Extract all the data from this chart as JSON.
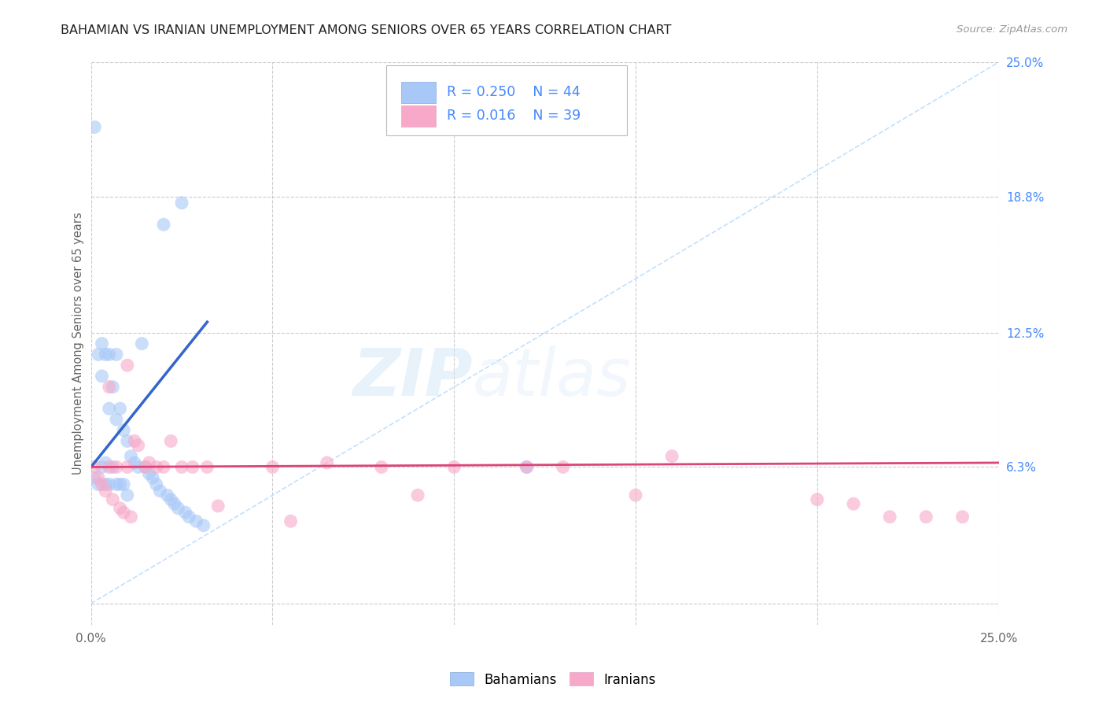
{
  "title": "BAHAMIAN VS IRANIAN UNEMPLOYMENT AMONG SENIORS OVER 65 YEARS CORRELATION CHART",
  "source": "Source: ZipAtlas.com",
  "ylabel": "Unemployment Among Seniors over 65 years",
  "xlim": [
    0.0,
    0.25
  ],
  "ylim": [
    -0.01,
    0.25
  ],
  "bahamian_R": 0.25,
  "bahamian_N": 44,
  "iranian_R": 0.016,
  "iranian_N": 39,
  "bahamian_color": "#a8c8f8",
  "iranian_color": "#f8a8c8",
  "bahamian_line_color": "#3366cc",
  "iranian_line_color": "#dd4477",
  "diagonal_color": "#bbddff",
  "background_color": "#ffffff",
  "grid_color": "#cccccc",
  "legend_text_color": "#4488ff",
  "right_tick_color": "#4488ff",
  "watermark": "ZIPatlas",
  "legend_bahamian_label": "Bahamians",
  "legend_iranian_label": "Iranians",
  "y_tick_positions_right": [
    0.0,
    0.063,
    0.125,
    0.188,
    0.25
  ],
  "y_tick_labels_right": [
    "",
    "6.3%",
    "12.5%",
    "18.8%",
    "25.0%"
  ],
  "bah_x": [
    0.001,
    0.001,
    0.002,
    0.002,
    0.003,
    0.003,
    0.003,
    0.004,
    0.004,
    0.004,
    0.005,
    0.005,
    0.005,
    0.006,
    0.006,
    0.007,
    0.007,
    0.007,
    0.008,
    0.008,
    0.009,
    0.009,
    0.01,
    0.01,
    0.011,
    0.012,
    0.013,
    0.014,
    0.015,
    0.016,
    0.017,
    0.018,
    0.019,
    0.02,
    0.021,
    0.022,
    0.023,
    0.024,
    0.025,
    0.026,
    0.027,
    0.029,
    0.031,
    0.12
  ],
  "bah_y": [
    0.22,
    0.058,
    0.115,
    0.055,
    0.12,
    0.105,
    0.063,
    0.115,
    0.065,
    0.055,
    0.115,
    0.09,
    0.055,
    0.1,
    0.063,
    0.115,
    0.085,
    0.055,
    0.09,
    0.055,
    0.08,
    0.055,
    0.075,
    0.05,
    0.068,
    0.065,
    0.063,
    0.12,
    0.063,
    0.06,
    0.058,
    0.055,
    0.052,
    0.175,
    0.05,
    0.048,
    0.046,
    0.044,
    0.185,
    0.042,
    0.04,
    0.038,
    0.036,
    0.063
  ],
  "iran_x": [
    0.001,
    0.002,
    0.003,
    0.004,
    0.005,
    0.006,
    0.007,
    0.008,
    0.009,
    0.01,
    0.011,
    0.012,
    0.013,
    0.015,
    0.016,
    0.018,
    0.02,
    0.022,
    0.025,
    0.028,
    0.032,
    0.035,
    0.05,
    0.055,
    0.065,
    0.08,
    0.09,
    0.1,
    0.12,
    0.13,
    0.15,
    0.16,
    0.2,
    0.21,
    0.22,
    0.23,
    0.24,
    0.005,
    0.01
  ],
  "iran_y": [
    0.063,
    0.058,
    0.055,
    0.052,
    0.063,
    0.048,
    0.063,
    0.044,
    0.042,
    0.063,
    0.04,
    0.075,
    0.073,
    0.063,
    0.065,
    0.063,
    0.063,
    0.075,
    0.063,
    0.063,
    0.063,
    0.045,
    0.063,
    0.038,
    0.065,
    0.063,
    0.05,
    0.063,
    0.063,
    0.063,
    0.05,
    0.068,
    0.048,
    0.046,
    0.04,
    0.04,
    0.04,
    0.1,
    0.11
  ],
  "bah_line_x": [
    0.0,
    0.032
  ],
  "bah_line_y": [
    0.063,
    0.13
  ],
  "iran_line_x": [
    0.0,
    0.25
  ],
  "iran_line_y": [
    0.063,
    0.065
  ]
}
